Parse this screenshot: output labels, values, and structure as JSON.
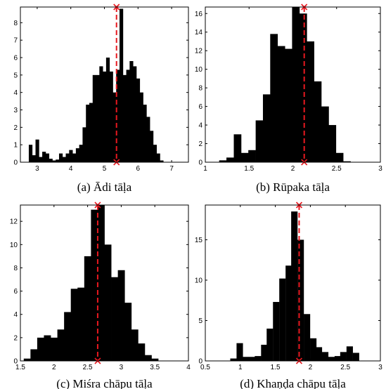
{
  "chart_data": [
    {
      "type": "bar",
      "title": "",
      "caption": "(a) Ādi tāḷa",
      "xlim": [
        2.5,
        7.5
      ],
      "ylim": [
        0,
        8.9
      ],
      "xticks": [
        3,
        4,
        5,
        6,
        7
      ],
      "yticks": [
        0,
        1,
        2,
        3,
        4,
        5,
        6,
        7,
        8
      ],
      "bin_width": 0.1,
      "x": [
        2.8,
        2.9,
        3.0,
        3.1,
        3.2,
        3.3,
        3.4,
        3.5,
        3.6,
        3.7,
        3.8,
        3.9,
        4.0,
        4.1,
        4.2,
        4.3,
        4.4,
        4.5,
        4.6,
        4.7,
        4.8,
        4.9,
        5.0,
        5.1,
        5.2,
        5.3,
        5.4,
        5.5,
        5.6,
        5.7,
        5.8,
        5.9,
        6.0,
        6.1,
        6.2,
        6.3,
        6.4,
        6.5,
        6.6,
        6.7
      ],
      "values": [
        1,
        0.4,
        1.3,
        0.3,
        0.6,
        0.5,
        0.2,
        0.1,
        0.15,
        0.5,
        0.3,
        0.5,
        0.7,
        0.5,
        0.8,
        1.0,
        2.0,
        3.3,
        3.4,
        5.0,
        5.0,
        5.5,
        5.2,
        6.0,
        5.2,
        4.0,
        5.3,
        8.8,
        5.0,
        5.3,
        5.8,
        5.5,
        4.8,
        4.0,
        3.3,
        2.6,
        1.8,
        1.0,
        0.5,
        0.1
      ],
      "marker_x": 5.36
    },
    {
      "type": "bar",
      "title": "",
      "caption": "(b) Rūpaka tāḷa",
      "xlim": [
        1,
        3
      ],
      "ylim": [
        0,
        16.7
      ],
      "xticks": [
        1,
        1.5,
        2,
        2.5,
        3
      ],
      "yticks": [
        0,
        2,
        4,
        6,
        8,
        10,
        12,
        14,
        16
      ],
      "bin_width": 0.0833,
      "x": [
        1.2,
        1.283,
        1.367,
        1.45,
        1.533,
        1.617,
        1.7,
        1.783,
        1.867,
        1.95,
        2.033,
        2.117,
        2.2,
        2.283,
        2.367,
        2.45,
        2.533,
        2.617
      ],
      "values": [
        0.2,
        0.5,
        3.0,
        1.0,
        1.3,
        4.5,
        7.3,
        13.8,
        12.5,
        12.2,
        16.7,
        16.0,
        13.0,
        8.7,
        6.0,
        4.0,
        1.0,
        0.1
      ],
      "marker_x": 2.13
    },
    {
      "type": "bar",
      "title": "",
      "caption": "(c) Miśra chāpu tāḷa",
      "xlim": [
        1.5,
        4
      ],
      "ylim": [
        0,
        13.4
      ],
      "xticks": [
        1.5,
        2,
        2.5,
        3,
        3.5,
        4
      ],
      "yticks": [
        0,
        2,
        4,
        6,
        8,
        10,
        12
      ],
      "bin_width": 0.1,
      "x": [
        1.6,
        1.7,
        1.8,
        1.9,
        2.0,
        2.1,
        2.2,
        2.3,
        2.4,
        2.5,
        2.6,
        2.7,
        2.8,
        2.9,
        3.0,
        3.1,
        3.2,
        3.3,
        3.4,
        3.5
      ],
      "values": [
        0.2,
        1.0,
        2.0,
        2.2,
        2.0,
        2.7,
        4.2,
        6.2,
        6.3,
        9.0,
        13.0,
        13.4,
        10.0,
        7.2,
        7.8,
        5.0,
        2.7,
        1.5,
        0.5,
        0.2
      ],
      "marker_x": 2.65
    },
    {
      "type": "bar",
      "title": "",
      "caption": "(d) Khaṇḍa chāpu tāḷa",
      "xlim": [
        0.5,
        3
      ],
      "ylim": [
        0,
        19.3
      ],
      "xticks": [
        0.5,
        1,
        1.5,
        2,
        2.5,
        3
      ],
      "yticks": [
        0,
        5,
        10,
        15
      ],
      "bin_width": 0.0875,
      "x": [
        0.9,
        0.99,
        1.07,
        1.16,
        1.25,
        1.34,
        1.42,
        1.51,
        1.6,
        1.69,
        1.77,
        1.86,
        1.95,
        2.04,
        2.12,
        2.21,
        2.3,
        2.39,
        2.47,
        2.56,
        2.65
      ],
      "values": [
        0.3,
        2.2,
        0.5,
        0.5,
        0.6,
        2.0,
        4.0,
        7.3,
        10.2,
        11.8,
        18.5,
        15.0,
        5.8,
        2.8,
        1.7,
        1.1,
        0.5,
        0.6,
        1.1,
        1.8,
        1.0
      ],
      "marker_x": 1.84
    }
  ],
  "colors": {
    "bars": "#000000",
    "marker": "#e8181f"
  }
}
